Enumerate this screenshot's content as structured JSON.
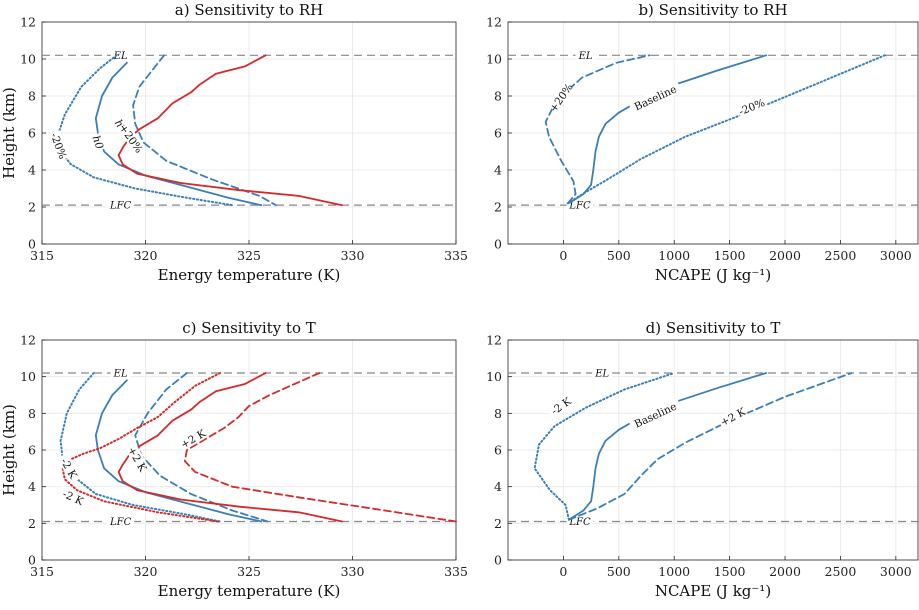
{
  "colors": {
    "blue": "#3a7fb8",
    "red": "#d42a2a",
    "ref": "#888888"
  },
  "chart_data": [
    {
      "id": "a",
      "type": "line",
      "title": "a) Sensitivity to RH",
      "xlabel": "Energy temperature (K)",
      "ylabel": "Height (km)",
      "xlim": [
        315,
        335
      ],
      "ylim": [
        0,
        12
      ],
      "xticks": [
        315,
        320,
        325,
        330,
        335
      ],
      "yticks": [
        0,
        2,
        4,
        6,
        8,
        10,
        12
      ],
      "hlines": [
        {
          "y": 10.2,
          "label": "EL",
          "label_x": 318.8
        },
        {
          "y": 2.1,
          "label": "LFC",
          "label_x": 318.8
        }
      ],
      "series": [
        {
          "name": "h (-20%)",
          "color": "blue",
          "style": "dotted",
          "x": [
            318.6,
            317.8,
            316.9,
            316.1,
            315.8,
            315.9,
            316.4,
            317.5,
            319.5,
            322.0,
            324.2
          ],
          "y": [
            10.2,
            9.5,
            8.5,
            7.0,
            6.0,
            5.0,
            4.3,
            3.6,
            3.0,
            2.5,
            2.1
          ]
        },
        {
          "name": "h0",
          "color": "blue",
          "style": "solid",
          "x": [
            319.1,
            318.4,
            317.9,
            317.6,
            317.7,
            318.0,
            318.7,
            320.0,
            322.0,
            324.0,
            325.6
          ],
          "y": [
            9.8,
            9.0,
            8.0,
            6.8,
            6.0,
            5.0,
            4.3,
            3.7,
            3.1,
            2.5,
            2.1
          ]
        },
        {
          "name": "h (+20%)",
          "color": "blue",
          "style": "dashed",
          "x": [
            320.9,
            320.4,
            319.7,
            319.4,
            319.5,
            319.9,
            321.0,
            323.2,
            325.5,
            326.3
          ],
          "y": [
            10.2,
            9.5,
            8.5,
            7.5,
            6.5,
            5.5,
            4.5,
            3.5,
            2.6,
            2.1
          ]
        },
        {
          "name": "h*",
          "color": "red",
          "style": "solid",
          "x": [
            325.8,
            324.8,
            323.4,
            322.6,
            322.2,
            321.3,
            320.6,
            319.7,
            319.2,
            318.9,
            318.7,
            318.9,
            319.6,
            321.7,
            324.6,
            327.4,
            329.5
          ],
          "y": [
            10.2,
            9.6,
            9.2,
            8.6,
            8.2,
            7.6,
            6.8,
            6.2,
            5.7,
            5.2,
            4.8,
            4.3,
            3.8,
            3.3,
            2.9,
            2.6,
            2.1
          ]
        }
      ],
      "curve_labels": [
        {
          "text": "-20%",
          "x": 315.8,
          "y": 5.3,
          "angle": 70,
          "italic": false
        },
        {
          "text": "h0",
          "x": 317.7,
          "y": 5.5,
          "angle": 70,
          "italic": true
        },
        {
          "text": "h*",
          "x": 318.8,
          "y": 6.4,
          "angle": 55,
          "italic": true
        },
        {
          "text": "+20%",
          "x": 319.3,
          "y": 5.7,
          "angle": 55,
          "italic": false
        }
      ]
    },
    {
      "id": "b",
      "type": "line",
      "title": "b) Sensitivity to RH",
      "xlabel": "NCAPE (J kg⁻¹)",
      "ylabel": "",
      "xlim": [
        -500,
        3200
      ],
      "ylim": [
        0,
        12
      ],
      "xticks": [
        0,
        500,
        1000,
        1500,
        2000,
        2500,
        3000
      ],
      "yticks": [
        0,
        2,
        4,
        6,
        8,
        10,
        12
      ],
      "hlines": [
        {
          "y": 10.2,
          "label": "EL",
          "label_x": 200
        },
        {
          "y": 2.1,
          "label": "LFC",
          "label_x": 150
        }
      ],
      "series": [
        {
          "name": "Baseline",
          "color": "blue",
          "style": "solid",
          "x": [
            50,
            180,
            250,
            270,
            290,
            320,
            380,
            500,
            700,
            1000,
            1400,
            1830
          ],
          "y": [
            2.2,
            2.7,
            3.2,
            4.0,
            5.0,
            5.8,
            6.5,
            7.1,
            7.8,
            8.6,
            9.4,
            10.2
          ]
        },
        {
          "name": "+20%",
          "color": "blue",
          "style": "dashed",
          "x": [
            40,
            110,
            90,
            -20,
            -130,
            -160,
            -60,
            170,
            480,
            780
          ],
          "y": [
            2.2,
            2.7,
            3.4,
            4.5,
            5.8,
            6.6,
            7.8,
            9.0,
            9.8,
            10.2
          ]
        },
        {
          "name": "-20%",
          "color": "blue",
          "style": "dotted",
          "x": [
            40,
            200,
            400,
            700,
            1100,
            1700,
            2300,
            2900
          ],
          "y": [
            2.2,
            2.8,
            3.5,
            4.6,
            5.8,
            7.2,
            8.7,
            10.2
          ]
        }
      ],
      "curve_labels": [
        {
          "text": "+20%",
          "x": -20,
          "y": 7.9,
          "angle": -55,
          "italic": false
        },
        {
          "text": "Baseline",
          "x": 830,
          "y": 7.9,
          "angle": -25,
          "italic": false
        },
        {
          "text": "-20%",
          "x": 1700,
          "y": 7.4,
          "angle": -22,
          "italic": false
        }
      ]
    },
    {
      "id": "c",
      "type": "line",
      "title": "c) Sensitivity to T",
      "xlabel": "Energy temperature (K)",
      "ylabel": "Height (km)",
      "xlim": [
        315,
        335
      ],
      "ylim": [
        0,
        12
      ],
      "xticks": [
        315,
        320,
        325,
        330,
        335
      ],
      "yticks": [
        0,
        2,
        4,
        6,
        8,
        10,
        12
      ],
      "hlines": [
        {
          "y": 10.2,
          "label": "EL",
          "label_x": 318.8
        },
        {
          "y": 2.1,
          "label": "LFC",
          "label_x": 318.8
        }
      ],
      "series": [
        {
          "name": "h (-2 K)",
          "color": "blue",
          "style": "dotted",
          "x": [
            317.5,
            316.8,
            316.2,
            315.9,
            316.0,
            316.6,
            317.6,
            319.4,
            321.9,
            323.6
          ],
          "y": [
            10.2,
            9.3,
            8.0,
            6.5,
            5.5,
            4.5,
            3.6,
            3.0,
            2.5,
            2.1
          ]
        },
        {
          "name": "h0",
          "color": "blue",
          "style": "solid",
          "x": [
            319.1,
            318.4,
            317.9,
            317.6,
            317.7,
            318.0,
            318.7,
            320.0,
            322.0,
            324.0,
            325.6
          ],
          "y": [
            9.8,
            9.0,
            8.0,
            6.8,
            6.0,
            5.0,
            4.3,
            3.7,
            3.1,
            2.5,
            2.1
          ]
        },
        {
          "name": "h (+2 K)",
          "color": "blue",
          "style": "dashed",
          "x": [
            322.0,
            321.0,
            320.1,
            319.5,
            319.8,
            320.7,
            322.2,
            324.2,
            325.9
          ],
          "y": [
            10.2,
            9.3,
            8.0,
            6.8,
            5.7,
            4.6,
            3.6,
            2.7,
            2.1
          ]
        },
        {
          "name": "h* (-2 K)",
          "color": "red",
          "style": "dotted",
          "x": [
            323.6,
            322.4,
            321.4,
            320.6,
            319.6,
            318.7,
            317.8,
            317.0,
            316.4,
            316.0,
            316.1,
            316.7,
            318.0,
            320.6,
            323.5
          ],
          "y": [
            10.2,
            9.5,
            8.6,
            7.8,
            7.2,
            6.6,
            6.1,
            5.8,
            5.5,
            5.0,
            4.4,
            3.8,
            3.2,
            2.6,
            2.1
          ]
        },
        {
          "name": "h*",
          "color": "red",
          "style": "solid",
          "x": [
            325.8,
            324.8,
            323.4,
            322.6,
            322.2,
            321.3,
            320.6,
            319.7,
            319.2,
            318.9,
            318.7,
            318.9,
            319.6,
            321.7,
            324.6,
            327.4,
            329.5
          ],
          "y": [
            10.2,
            9.6,
            9.2,
            8.6,
            8.2,
            7.6,
            6.8,
            6.2,
            5.7,
            5.2,
            4.8,
            4.3,
            3.8,
            3.3,
            2.9,
            2.6,
            2.1
          ]
        },
        {
          "name": "h* (+2 K)",
          "color": "red",
          "style": "dashed",
          "x": [
            328.4,
            327.2,
            326.0,
            325.0,
            324.5,
            323.8,
            322.9,
            322.0,
            321.9,
            322.4,
            324.2,
            327.5,
            331.0,
            335.0
          ],
          "y": [
            10.2,
            9.6,
            9.0,
            8.4,
            7.8,
            7.2,
            6.6,
            6.0,
            5.4,
            4.8,
            4.0,
            3.4,
            2.8,
            2.1
          ]
        }
      ],
      "curve_labels": [
        {
          "text": "-2 K",
          "x": 316.3,
          "y": 5.0,
          "angle": 60,
          "italic": false
        },
        {
          "text": "-2 K",
          "x": 316.5,
          "y": 3.4,
          "angle": 25,
          "italic": false
        },
        {
          "text": "+2 K",
          "x": 319.6,
          "y": 5.5,
          "angle": 60,
          "italic": false
        },
        {
          "text": "+2 K",
          "x": 322.3,
          "y": 6.6,
          "angle": -30,
          "italic": false
        }
      ]
    },
    {
      "id": "d",
      "type": "line",
      "title": "d) Sensitivity to T",
      "xlabel": "NCAPE (J kg⁻¹)",
      "ylabel": "",
      "xlim": [
        -500,
        3200
      ],
      "ylim": [
        0,
        12
      ],
      "xticks": [
        0,
        500,
        1000,
        1500,
        2000,
        2500,
        3000
      ],
      "yticks": [
        0,
        2,
        4,
        6,
        8,
        10,
        12
      ],
      "hlines": [
        {
          "y": 10.2,
          "label": "EL",
          "label_x": 350
        },
        {
          "y": 2.1,
          "label": "LFC",
          "label_x": 150
        }
      ],
      "series": [
        {
          "name": "Baseline",
          "color": "blue",
          "style": "solid",
          "x": [
            50,
            180,
            250,
            270,
            290,
            320,
            380,
            500,
            700,
            1000,
            1400,
            1830
          ],
          "y": [
            2.2,
            2.7,
            3.2,
            4.0,
            5.0,
            5.8,
            6.5,
            7.1,
            7.8,
            8.6,
            9.4,
            10.2
          ]
        },
        {
          "name": "-2 K",
          "color": "blue",
          "style": "dotted",
          "x": [
            50,
            20,
            -120,
            -260,
            -220,
            -80,
            200,
            550,
            1000
          ],
          "y": [
            2.2,
            3.0,
            3.8,
            5.0,
            6.3,
            7.3,
            8.3,
            9.3,
            10.2
          ]
        },
        {
          "name": "+2 K",
          "color": "blue",
          "style": "dashed",
          "x": [
            50,
            300,
            550,
            700,
            850,
            1100,
            1500,
            2000,
            2600
          ],
          "y": [
            2.2,
            2.8,
            3.6,
            4.6,
            5.5,
            6.4,
            7.6,
            8.9,
            10.2
          ]
        }
      ],
      "curve_labels": [
        {
          "text": "-2 K",
          "x": -20,
          "y": 8.4,
          "angle": -35,
          "italic": false
        },
        {
          "text": "Baseline",
          "x": 830,
          "y": 7.9,
          "angle": -25,
          "italic": false
        },
        {
          "text": "+2 K",
          "x": 1530,
          "y": 7.8,
          "angle": -28,
          "italic": false
        }
      ]
    }
  ]
}
